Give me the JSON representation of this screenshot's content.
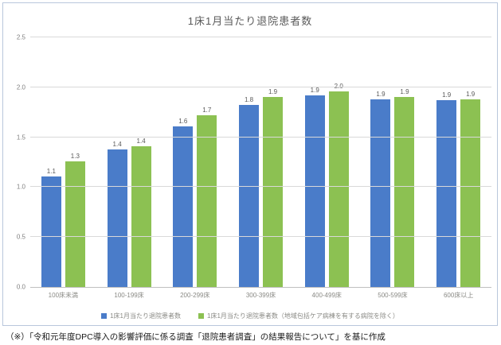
{
  "chart": {
    "footnote": "（※）「令和元年度DPC導入の影響評価に係る調査「退院患者調査」の結果報告について」を基に作成"
  },
  "chart_data": {
    "type": "bar",
    "title": "1床1月当たり退院患者数",
    "categories": [
      "100床未満",
      "100-199床",
      "200-299床",
      "300-399床",
      "400-499床",
      "500-599床",
      "600床以上"
    ],
    "series": [
      {
        "name": "1床1月当たり退院患者数",
        "color": "#4a7cc9",
        "values": [
          1.1,
          1.4,
          1.6,
          1.8,
          1.9,
          1.9,
          1.9
        ],
        "labels": [
          "1.1",
          "1.4",
          "1.6",
          "1.8",
          "1.9",
          "1.9",
          "1.9"
        ],
        "values_precise": [
          1.11,
          1.38,
          1.61,
          1.82,
          1.92,
          1.88,
          1.87
        ]
      },
      {
        "name": "1床1月当たり退院患者数（地域包括ケア病棟を有する病院を除く）",
        "color": "#8cc152",
        "values": [
          1.3,
          1.4,
          1.7,
          1.9,
          2.0,
          1.9,
          1.9
        ],
        "labels": [
          "1.3",
          "1.4",
          "1.7",
          "1.9",
          "2.0",
          "1.9",
          "1.9"
        ],
        "values_precise": [
          1.26,
          1.41,
          1.72,
          1.9,
          1.96,
          1.9,
          1.88
        ]
      }
    ],
    "y_ticks": [
      "0.0",
      "0.5",
      "1.0",
      "1.5",
      "2.0",
      "2.5"
    ],
    "y_tick_values": [
      0,
      0.5,
      1.0,
      1.5,
      2.0,
      2.5
    ],
    "ylim": [
      0,
      2.5
    ],
    "grid": true,
    "legend_position": "bottom"
  }
}
